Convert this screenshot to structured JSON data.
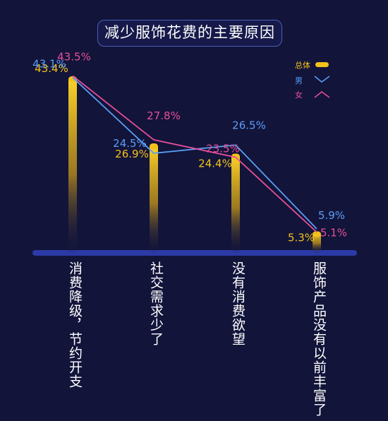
{
  "chart_data": {
    "type": "bar+line",
    "title": "减少服饰花费的主要原因",
    "categories": [
      "消费降级，节约开支",
      "社交需求少了",
      "没有消费欲望",
      "服饰产品没有以前丰富了"
    ],
    "series": [
      {
        "name": "总体",
        "kind": "bar",
        "values": [
          43.4,
          26.9,
          24.4,
          5.3
        ],
        "labels": [
          "43.4%",
          "26.9%",
          "24.4%",
          "5.3%"
        ]
      },
      {
        "name": "男",
        "kind": "line",
        "values": [
          43.1,
          24.5,
          26.5,
          5.9
        ],
        "labels": [
          "43.1%",
          "24.5%",
          "26.5%",
          "5.9%"
        ]
      },
      {
        "name": "女",
        "kind": "line",
        "values": [
          43.5,
          27.8,
          23.5,
          5.1
        ],
        "labels": [
          "43.5%",
          "27.8%",
          "23.5%",
          "5.1%"
        ]
      }
    ],
    "ylim": [
      0,
      50
    ],
    "grid": false,
    "legend_position": "top-right"
  },
  "colors": {
    "background": "#12143a",
    "bar": "#f2c21b",
    "male": "#5b9ef5",
    "female": "#e84f97",
    "baseline": "#2b3aa6",
    "title_border": "#4a62b8"
  }
}
